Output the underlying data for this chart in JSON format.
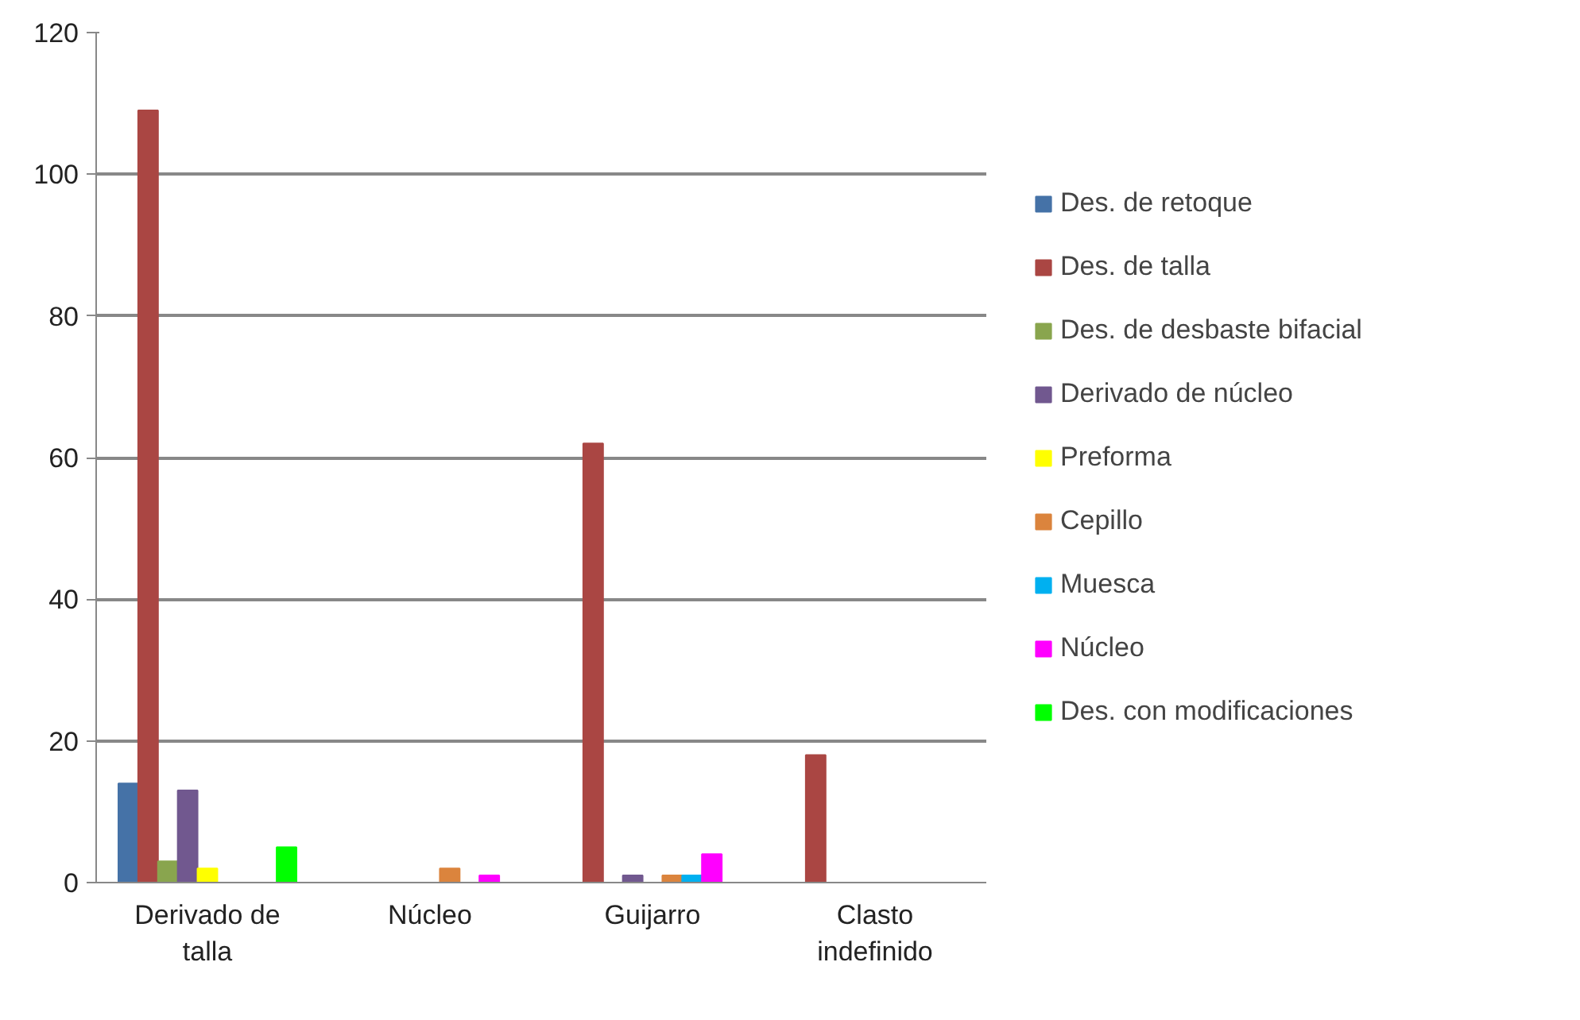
{
  "chart_data": {
    "type": "bar",
    "categories": [
      "Derivado de talla",
      "Núcleo",
      "Guijarro",
      "Clasto indefinido"
    ],
    "series": [
      {
        "name": "Des. de retoque",
        "color": "#4572a7",
        "values": [
          14,
          null,
          null,
          null
        ]
      },
      {
        "name": "Des. de talla",
        "color": "#aa4643",
        "values": [
          109,
          null,
          62,
          18
        ]
      },
      {
        "name": "Des. de desbaste bifacial",
        "color": "#89a54e",
        "values": [
          3,
          null,
          null,
          null
        ]
      },
      {
        "name": "Derivado de núcleo",
        "color": "#71588f",
        "values": [
          13,
          null,
          1,
          null
        ]
      },
      {
        "name": "Preforma",
        "color": "#ffff00",
        "values": [
          2,
          null,
          null,
          null
        ]
      },
      {
        "name": "Cepillo",
        "color": "#db843d",
        "values": [
          null,
          2,
          1,
          null
        ]
      },
      {
        "name": "Muesca",
        "color": "#00b0f0",
        "values": [
          null,
          null,
          1,
          null
        ]
      },
      {
        "name": "Núcleo",
        "color": "#ff00ff",
        "values": [
          null,
          1,
          4,
          null
        ]
      },
      {
        "name": "Des. con modificaciones",
        "color": "#00ff00",
        "values": [
          5,
          null,
          null,
          null
        ]
      }
    ],
    "ylim": [
      0,
      120
    ],
    "yticks": [
      0,
      20,
      40,
      60,
      80,
      100,
      120
    ],
    "grid": "y",
    "legend": "right"
  }
}
